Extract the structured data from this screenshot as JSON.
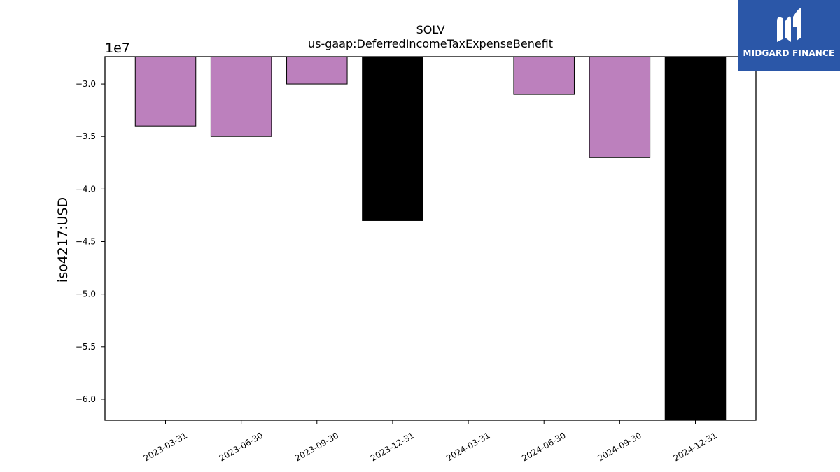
{
  "chart_data": {
    "type": "bar",
    "title": "SOLV",
    "subtitle": "us-gaap:DeferredIncomeTaxExpenseBenefit",
    "ylabel": "iso4217:USD",
    "xlabel": "",
    "offset_label": "1e7",
    "categories": [
      "2023-03-31",
      "2023-06-30",
      "2023-09-30",
      "2023-12-31",
      "2024-03-31",
      "2024-06-30",
      "2024-09-30",
      "2024-12-31"
    ],
    "values": [
      -34000000,
      -35000000,
      -30000000,
      -43000000,
      null,
      -31000000,
      -37000000,
      -62000000
    ],
    "highlight": [
      false,
      false,
      false,
      true,
      false,
      false,
      false,
      true
    ],
    "ylim": [
      -62000000,
      -27400000
    ],
    "yticks": [
      -30000000,
      -35000000,
      -40000000,
      -45000000,
      -50000000,
      -55000000,
      -60000000
    ],
    "ytick_labels": [
      "−3.0",
      "−3.5",
      "−4.0",
      "−4.5",
      "−5.0",
      "−5.5",
      "−6.0"
    ],
    "grid": false,
    "colors": {
      "bar": "#bc80bd",
      "highlight": "#000000",
      "edge": "#000000"
    }
  },
  "logo": {
    "text": "MIDGARD FINANCE",
    "color": "#2b57a8"
  }
}
